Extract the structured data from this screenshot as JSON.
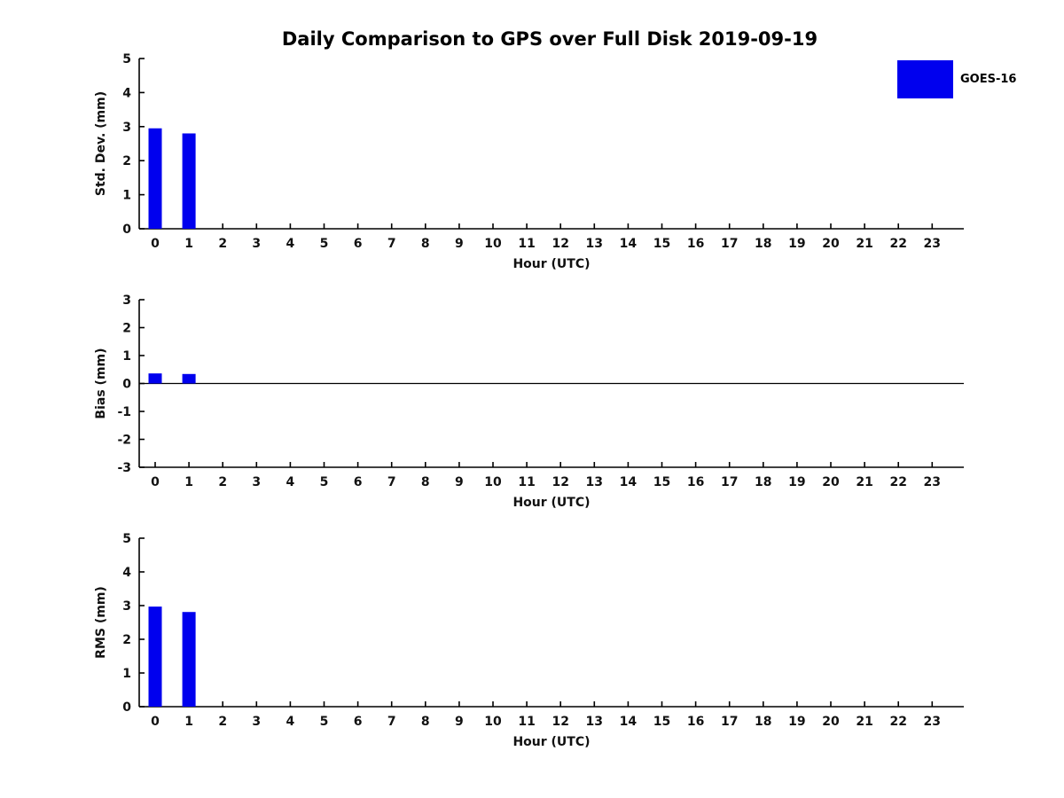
{
  "title": "Daily Comparison to GPS over Full Disk 2019-09-19",
  "legend": {
    "label": "GOES-16",
    "color": "#0000EE",
    "position": "upper-right-outside"
  },
  "accent_colors": {
    "bar_blue": "#0000EE",
    "axis_black": "#000000"
  },
  "chart_data": [
    {
      "type": "bar",
      "title": "",
      "xlabel": "Hour (UTC)",
      "ylabel": "Std. Dev. (mm)",
      "categories": [
        "0",
        "1",
        "2",
        "3",
        "4",
        "5",
        "6",
        "7",
        "8",
        "9",
        "10",
        "11",
        "12",
        "13",
        "14",
        "15",
        "16",
        "17",
        "18",
        "19",
        "20",
        "21",
        "22",
        "23"
      ],
      "values": [
        2.95,
        2.8,
        0,
        0,
        0,
        0,
        0,
        0,
        0,
        0,
        0,
        0,
        0,
        0,
        0,
        0,
        0,
        0,
        0,
        0,
        0,
        0,
        0,
        0
      ],
      "series_name": "GOES-16",
      "ylim": [
        0,
        5
      ],
      "yticks": [
        0,
        1,
        2,
        3,
        4,
        5
      ],
      "grid": false,
      "zero_line": false
    },
    {
      "type": "bar",
      "title": "",
      "xlabel": "Hour (UTC)",
      "ylabel": "Bias (mm)",
      "categories": [
        "0",
        "1",
        "2",
        "3",
        "4",
        "5",
        "6",
        "7",
        "8",
        "9",
        "10",
        "11",
        "12",
        "13",
        "14",
        "15",
        "16",
        "17",
        "18",
        "19",
        "20",
        "21",
        "22",
        "23"
      ],
      "values": [
        0.36,
        0.34,
        0,
        0,
        0,
        0,
        0,
        0,
        0,
        0,
        0,
        0,
        0,
        0,
        0,
        0,
        0,
        0,
        0,
        0,
        0,
        0,
        0,
        0
      ],
      "series_name": "GOES-16",
      "ylim": [
        -3,
        3
      ],
      "yticks": [
        -3,
        -2,
        -1,
        0,
        1,
        2,
        3
      ],
      "grid": false,
      "zero_line": true
    },
    {
      "type": "bar",
      "title": "",
      "xlabel": "Hour (UTC)",
      "ylabel": "RMS (mm)",
      "categories": [
        "0",
        "1",
        "2",
        "3",
        "4",
        "5",
        "6",
        "7",
        "8",
        "9",
        "10",
        "11",
        "12",
        "13",
        "14",
        "15",
        "16",
        "17",
        "18",
        "19",
        "20",
        "21",
        "22",
        "23"
      ],
      "values": [
        2.97,
        2.81,
        0,
        0,
        0,
        0,
        0,
        0,
        0,
        0,
        0,
        0,
        0,
        0,
        0,
        0,
        0,
        0,
        0,
        0,
        0,
        0,
        0,
        0
      ],
      "series_name": "GOES-16",
      "ylim": [
        0,
        5
      ],
      "yticks": [
        0,
        1,
        2,
        3,
        4,
        5
      ],
      "grid": false,
      "zero_line": false
    }
  ]
}
